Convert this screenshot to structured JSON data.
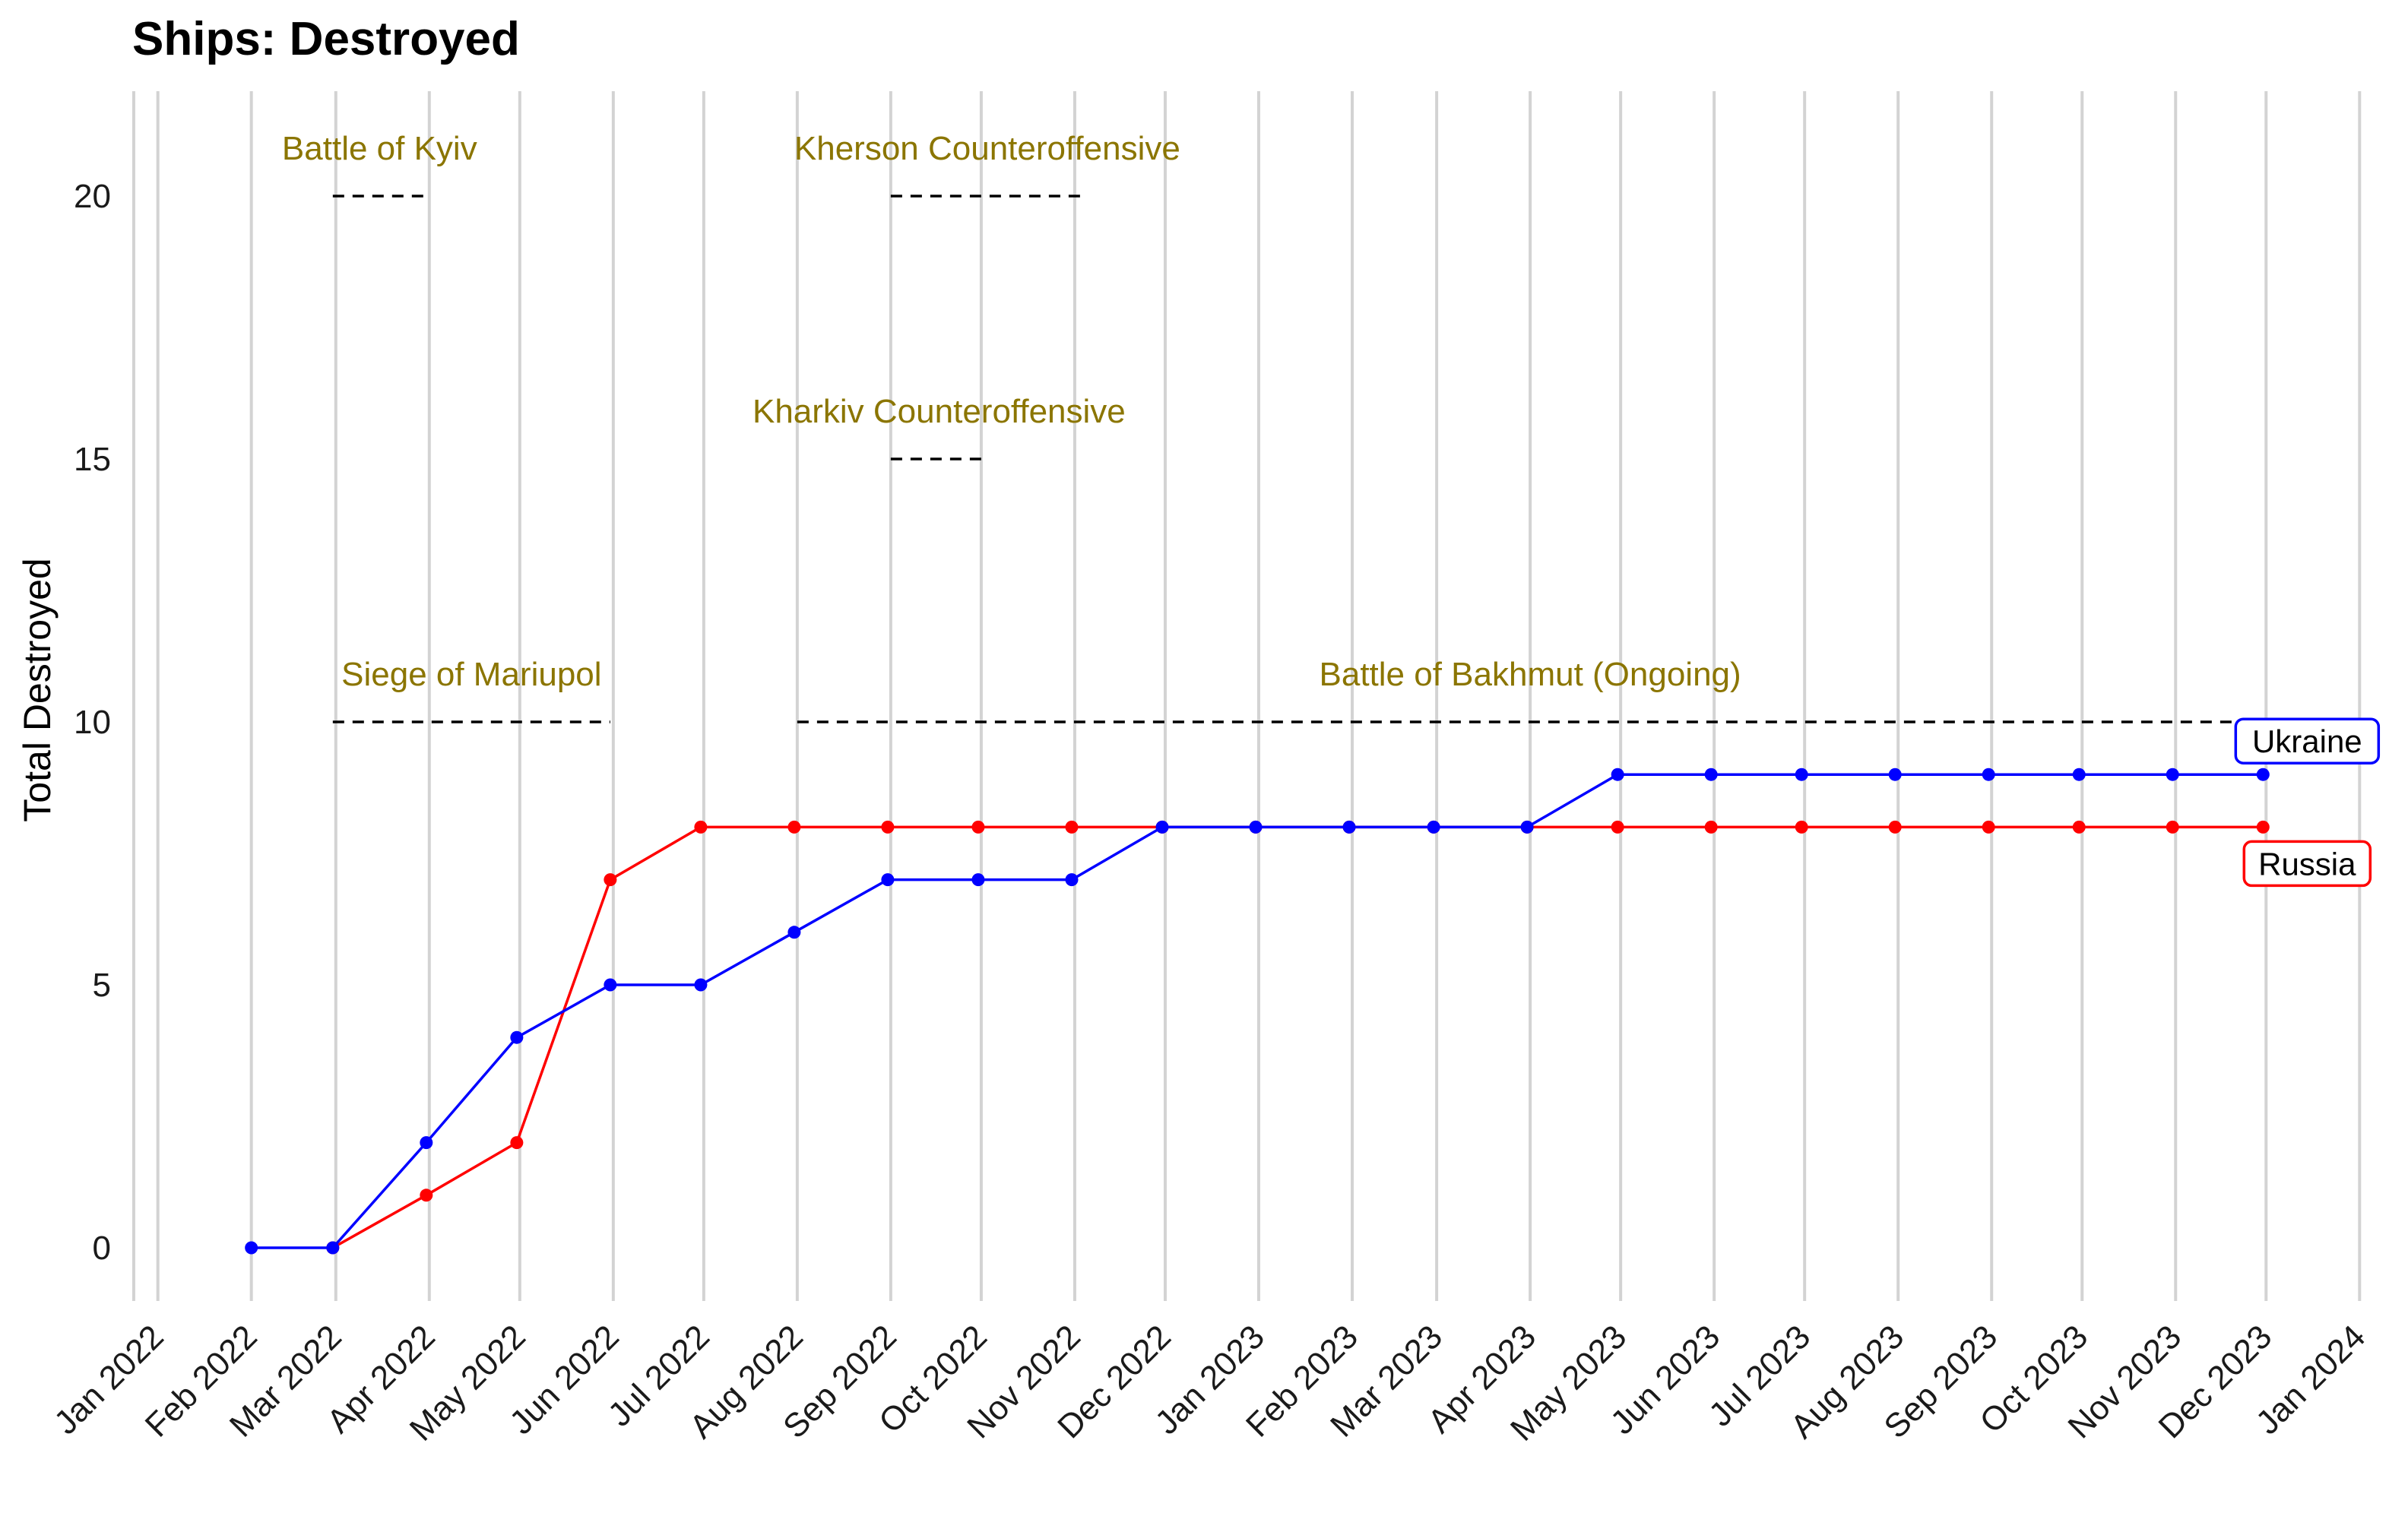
{
  "chart_data": {
    "type": "line",
    "title": "Ships: Destroyed",
    "xlabel": "",
    "ylabel": "Total Destroyed",
    "ylim": [
      -1.2,
      22
    ],
    "yticks": [
      0,
      5,
      10,
      15,
      20
    ],
    "x_range": [
      "2021-12-22",
      "2024-01-10"
    ],
    "x_ticks": [
      {
        "date": "2022-01-01",
        "label": "Jan 2022"
      },
      {
        "date": "2022-02-01",
        "label": "Feb 2022"
      },
      {
        "date": "2022-03-01",
        "label": "Mar 2022"
      },
      {
        "date": "2022-04-01",
        "label": "Apr 2022"
      },
      {
        "date": "2022-05-01",
        "label": "May 2022"
      },
      {
        "date": "2022-06-01",
        "label": "Jun 2022"
      },
      {
        "date": "2022-07-01",
        "label": "Jul 2022"
      },
      {
        "date": "2022-08-01",
        "label": "Aug 2022"
      },
      {
        "date": "2022-09-01",
        "label": "Sep 2022"
      },
      {
        "date": "2022-10-01",
        "label": "Oct 2022"
      },
      {
        "date": "2022-11-01",
        "label": "Nov 2022"
      },
      {
        "date": "2022-12-01",
        "label": "Dec 2022"
      },
      {
        "date": "2023-01-01",
        "label": "Jan 2023"
      },
      {
        "date": "2023-02-01",
        "label": "Feb 2023"
      },
      {
        "date": "2023-03-01",
        "label": "Mar 2023"
      },
      {
        "date": "2023-04-01",
        "label": "Apr 2023"
      },
      {
        "date": "2023-05-01",
        "label": "May 2023"
      },
      {
        "date": "2023-06-01",
        "label": "Jun 2023"
      },
      {
        "date": "2023-07-01",
        "label": "Jul 2023"
      },
      {
        "date": "2023-08-01",
        "label": "Aug 2023"
      },
      {
        "date": "2023-09-01",
        "label": "Sep 2023"
      },
      {
        "date": "2023-10-01",
        "label": "Oct 2023"
      },
      {
        "date": "2023-11-01",
        "label": "Nov 2023"
      },
      {
        "date": "2023-12-01",
        "label": "Dec 2023"
      },
      {
        "date": "2024-01-01",
        "label": "Jan 2024"
      }
    ],
    "extra_gridlines": [
      "2021-12-24"
    ],
    "grid": "vertical",
    "series": [
      {
        "name": "Ukraine",
        "color": "#0000ff",
        "points": [
          {
            "date": "2022-02-01",
            "value": 0
          },
          {
            "date": "2022-02-28",
            "value": 0
          },
          {
            "date": "2022-03-31",
            "value": 2
          },
          {
            "date": "2022-04-30",
            "value": 4
          },
          {
            "date": "2022-05-31",
            "value": 5
          },
          {
            "date": "2022-06-30",
            "value": 5
          },
          {
            "date": "2022-07-31",
            "value": 6
          },
          {
            "date": "2022-08-31",
            "value": 7
          },
          {
            "date": "2022-09-30",
            "value": 7
          },
          {
            "date": "2022-10-31",
            "value": 7
          },
          {
            "date": "2022-11-30",
            "value": 8
          },
          {
            "date": "2022-12-31",
            "value": 8
          },
          {
            "date": "2023-01-31",
            "value": 8
          },
          {
            "date": "2023-02-28",
            "value": 8
          },
          {
            "date": "2023-03-31",
            "value": 8
          },
          {
            "date": "2023-04-30",
            "value": 9
          },
          {
            "date": "2023-05-31",
            "value": 9
          },
          {
            "date": "2023-06-30",
            "value": 9
          },
          {
            "date": "2023-07-31",
            "value": 9
          },
          {
            "date": "2023-08-31",
            "value": 9
          },
          {
            "date": "2023-09-30",
            "value": 9
          },
          {
            "date": "2023-10-31",
            "value": 9
          },
          {
            "date": "2023-11-30",
            "value": 9
          }
        ]
      },
      {
        "name": "Russia",
        "color": "#ff0000",
        "points": [
          {
            "date": "2022-02-28",
            "value": 0
          },
          {
            "date": "2022-03-31",
            "value": 1
          },
          {
            "date": "2022-04-30",
            "value": 2
          },
          {
            "date": "2022-05-31",
            "value": 7
          },
          {
            "date": "2022-06-30",
            "value": 8
          },
          {
            "date": "2022-07-31",
            "value": 8
          },
          {
            "date": "2022-08-31",
            "value": 8
          },
          {
            "date": "2022-09-30",
            "value": 8
          },
          {
            "date": "2022-10-31",
            "value": 8
          },
          {
            "date": "2022-11-30",
            "value": 8
          },
          {
            "date": "2022-12-31",
            "value": 8
          },
          {
            "date": "2023-01-31",
            "value": 8
          },
          {
            "date": "2023-02-28",
            "value": 8
          },
          {
            "date": "2023-03-31",
            "value": 8
          },
          {
            "date": "2023-04-30",
            "value": 8
          },
          {
            "date": "2023-05-31",
            "value": 8
          },
          {
            "date": "2023-06-30",
            "value": 8
          },
          {
            "date": "2023-07-31",
            "value": 8
          },
          {
            "date": "2023-08-31",
            "value": 8
          },
          {
            "date": "2023-09-30",
            "value": 8
          },
          {
            "date": "2023-10-31",
            "value": 8
          },
          {
            "date": "2023-11-30",
            "value": 8
          }
        ]
      }
    ],
    "annotations": [
      {
        "label": "Battle of Kyiv",
        "start": "2022-02-28",
        "end": "2022-03-31",
        "level": 20,
        "color": "#8b7500"
      },
      {
        "label": "Kherson Counteroffensive",
        "start": "2022-09-01",
        "end": "2022-11-04",
        "level": 20,
        "color": "#8b7500"
      },
      {
        "label": "Kharkiv Counteroffensive",
        "start": "2022-09-01",
        "end": "2022-10-03",
        "level": 15,
        "color": "#8b7500"
      },
      {
        "label": "Siege of Mariupol",
        "start": "2022-02-28",
        "end": "2022-05-31",
        "level": 10,
        "color": "#8b7500"
      },
      {
        "label": "Battle of Bakhmut (Ongoing)",
        "start": "2022-08-01",
        "end": "2023-11-30",
        "level": 10,
        "color": "#8b7500"
      }
    ],
    "end_labels": [
      {
        "series": "Ukraine",
        "label": "Ukraine",
        "color": "#0000ff"
      },
      {
        "series": "Russia",
        "label": "Russia",
        "color": "#ff0000"
      }
    ]
  }
}
